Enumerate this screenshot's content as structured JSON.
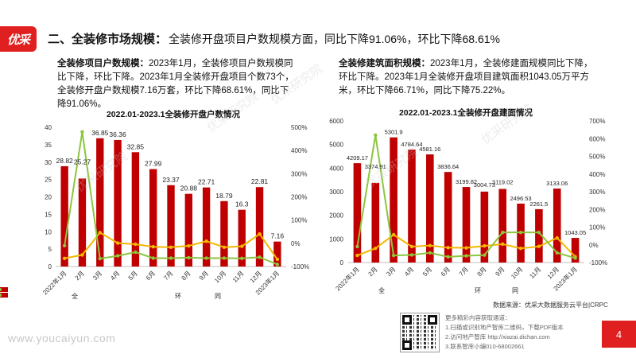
{
  "logo": {
    "text": "优采"
  },
  "header": {
    "title": "二、全装修市场规模：",
    "description": "全装修开盘项目户数规模方面，同比下降91.06%，环比下降68.61%"
  },
  "left_text": {
    "lead": "全装修项目户数规模：",
    "body": "2023年1月，全装修项目户数规模同比下降，环比下降。2023年1月全装修开盘项目个数73个，全装修开盘户数规模7.16万套，环比下降68.61%，同比下降91.06%。"
  },
  "right_text": {
    "lead": "全装修建筑面积规模：",
    "body": "2023年1月，全装修建面规模同比下降，环比下降。2023年1月全装修开盘项目建筑面积1043.05万平方米，环比下降66.71%，同比下降75.22%。"
  },
  "source": "数据来源：优采大数据服务云平台|CRPC",
  "more_info": {
    "title": "更多精彩内容获取通道：",
    "lines": [
      "1.扫描或识别地产智库二维码，下载PDF版本",
      "2.访问地产智库 http://xiazai.dichan.com",
      "3.联系智库小编010-68002661"
    ]
  },
  "website": "www.youcaiyun.com",
  "page_number": "4",
  "watermark": "优采研究院",
  "colors": {
    "bar": "#c00000",
    "huanbi": "#f5b800",
    "tongbi": "#8cc63f",
    "accent": "#e02020"
  },
  "chart_data": [
    {
      "type": "bar",
      "title": "2022.01-2023.1全装修开盘户数情况",
      "categories": [
        "2022年1月",
        "2月",
        "3月",
        "4月",
        "5月",
        "6月",
        "7月",
        "8月",
        "9月",
        "10月",
        "11月",
        "12月",
        "2023年1月"
      ],
      "series": [
        {
          "name": "全装修项目开盘户数（万套）",
          "axis": "left",
          "type": "bar",
          "values": [
            28.82,
            25.27,
            36.85,
            36.36,
            32.85,
            27.99,
            23.37,
            20.88,
            22.71,
            18.79,
            16.3,
            22.81,
            7.16
          ]
        },
        {
          "name": "环比",
          "axis": "right",
          "type": "line",
          "values": [
            -65,
            -50,
            46,
            1,
            -4,
            -15,
            -17,
            -11,
            9,
            -17,
            -13,
            40,
            -69
          ]
        },
        {
          "name": "同比",
          "axis": "right",
          "type": "line",
          "values": [
            -10,
            480,
            -66,
            -54,
            -38,
            -64,
            -64,
            -62,
            -64,
            -64,
            -65,
            -60,
            -91
          ]
        }
      ],
      "left_axis": {
        "ylim": [
          0,
          40
        ],
        "ticks": [
          "0",
          "5",
          "10",
          "15",
          "20",
          "25",
          "30",
          "35",
          "40"
        ]
      },
      "right_axis": {
        "ylim": [
          -100,
          500
        ],
        "ticks": [
          "-100%",
          "0%",
          "100%",
          "200%",
          "300%",
          "400%",
          "500%"
        ]
      },
      "legend": "bottom"
    },
    {
      "type": "bar",
      "title": "2022.01-2023.1全装修开盘建面情况",
      "categories": [
        "2022年1月",
        "2月",
        "3月",
        "4月",
        "5月",
        "6月",
        "7月",
        "8月",
        "9月",
        "10月",
        "11月",
        "12月",
        "2023年1月"
      ],
      "series": [
        {
          "name": "全装修项目开盘建面（万㎡）",
          "axis": "left",
          "type": "bar",
          "values": [
            4209.17,
            3374.91,
            5301.9,
            4784.64,
            4581.16,
            3836.64,
            3199.82,
            3004.73,
            3119.02,
            2496.53,
            2261.5,
            3133.06,
            1043.05
          ]
        },
        {
          "name": "环比",
          "axis": "right",
          "type": "line",
          "values": [
            -60,
            -20,
            57,
            -10,
            -4,
            -16,
            -17,
            -6,
            4,
            -20,
            -9,
            39,
            -67
          ]
        },
        {
          "name": "同比",
          "axis": "right",
          "type": "line",
          "values": [
            -10,
            620,
            -60,
            -57,
            -45,
            -68,
            -62,
            -58,
            70,
            70,
            70,
            -45,
            -75
          ]
        }
      ],
      "left_axis": {
        "ylim": [
          0,
          6000
        ],
        "ticks": [
          "0",
          "1000",
          "2000",
          "3000",
          "4000",
          "5000",
          "6000"
        ]
      },
      "right_axis": {
        "ylim": [
          -100,
          700
        ],
        "ticks": [
          "-100%",
          "0%",
          "100%",
          "200%",
          "300%",
          "400%",
          "500%",
          "600%",
          "700%"
        ]
      },
      "legend": "bottom"
    }
  ]
}
